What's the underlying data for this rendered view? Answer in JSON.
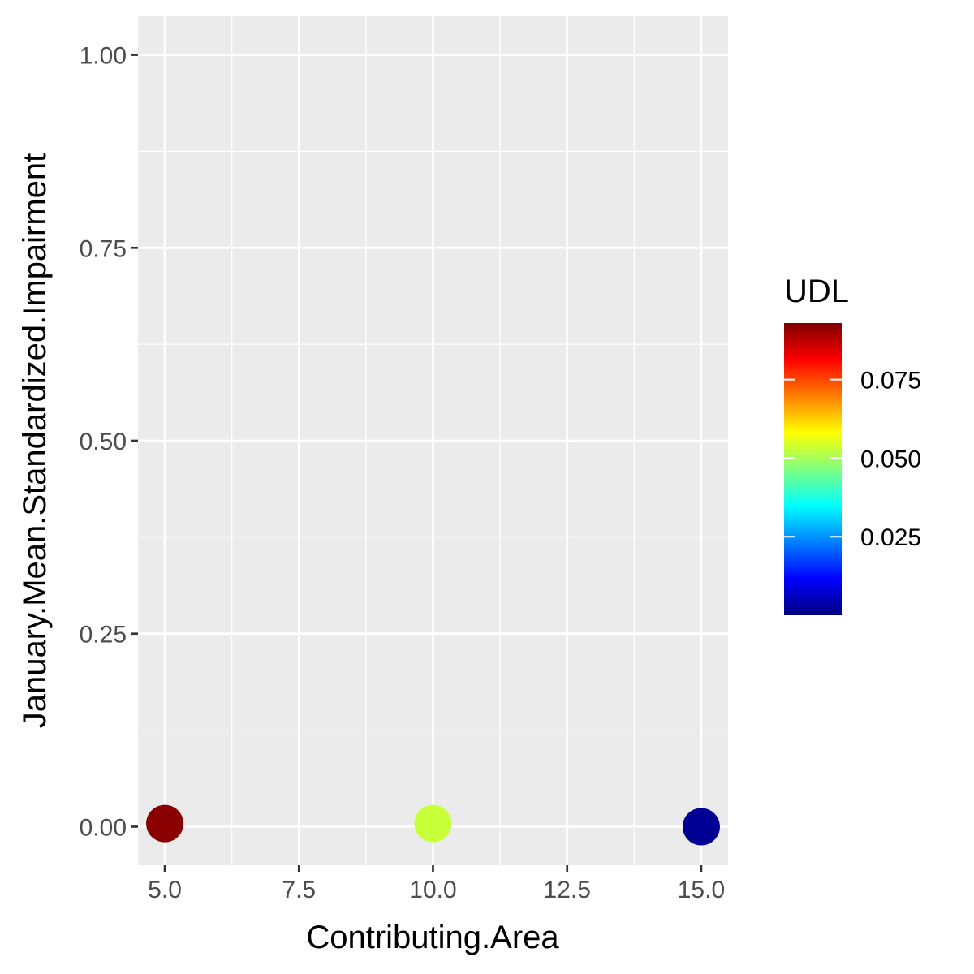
{
  "chart_data": {
    "type": "scatter",
    "title": "",
    "xlabel": "Contributing.Area",
    "ylabel": "January.Mean.Standardized.Impairment",
    "xlim": [
      4.5,
      15.5
    ],
    "ylim": [
      -0.05,
      1.05
    ],
    "x_ticks": [
      "5.0",
      "7.5",
      "10.0",
      "12.5",
      "15.0"
    ],
    "y_ticks": [
      "0.00",
      "0.25",
      "0.50",
      "0.75",
      "1.00"
    ],
    "grid": true,
    "points": [
      {
        "x": 5,
        "y": 0.004,
        "udl": 0.092
      },
      {
        "x": 10,
        "y": 0.004,
        "udl": 0.053
      },
      {
        "x": 15,
        "y": 0.0,
        "udl": 0.002
      }
    ],
    "legend": {
      "title": "UDL",
      "placement": "right",
      "range": [
        0.0,
        0.093
      ],
      "ticks": [
        "0.075",
        "0.050",
        "0.025"
      ],
      "colormap": [
        "#00007f",
        "#0000ff",
        "#007fff",
        "#00ffff",
        "#7fff7f",
        "#ffff00",
        "#ff7f00",
        "#ff0000",
        "#7f0000"
      ]
    },
    "colors": {
      "panel_background": "#ebebeb",
      "grid_line": "#ffffff"
    }
  }
}
